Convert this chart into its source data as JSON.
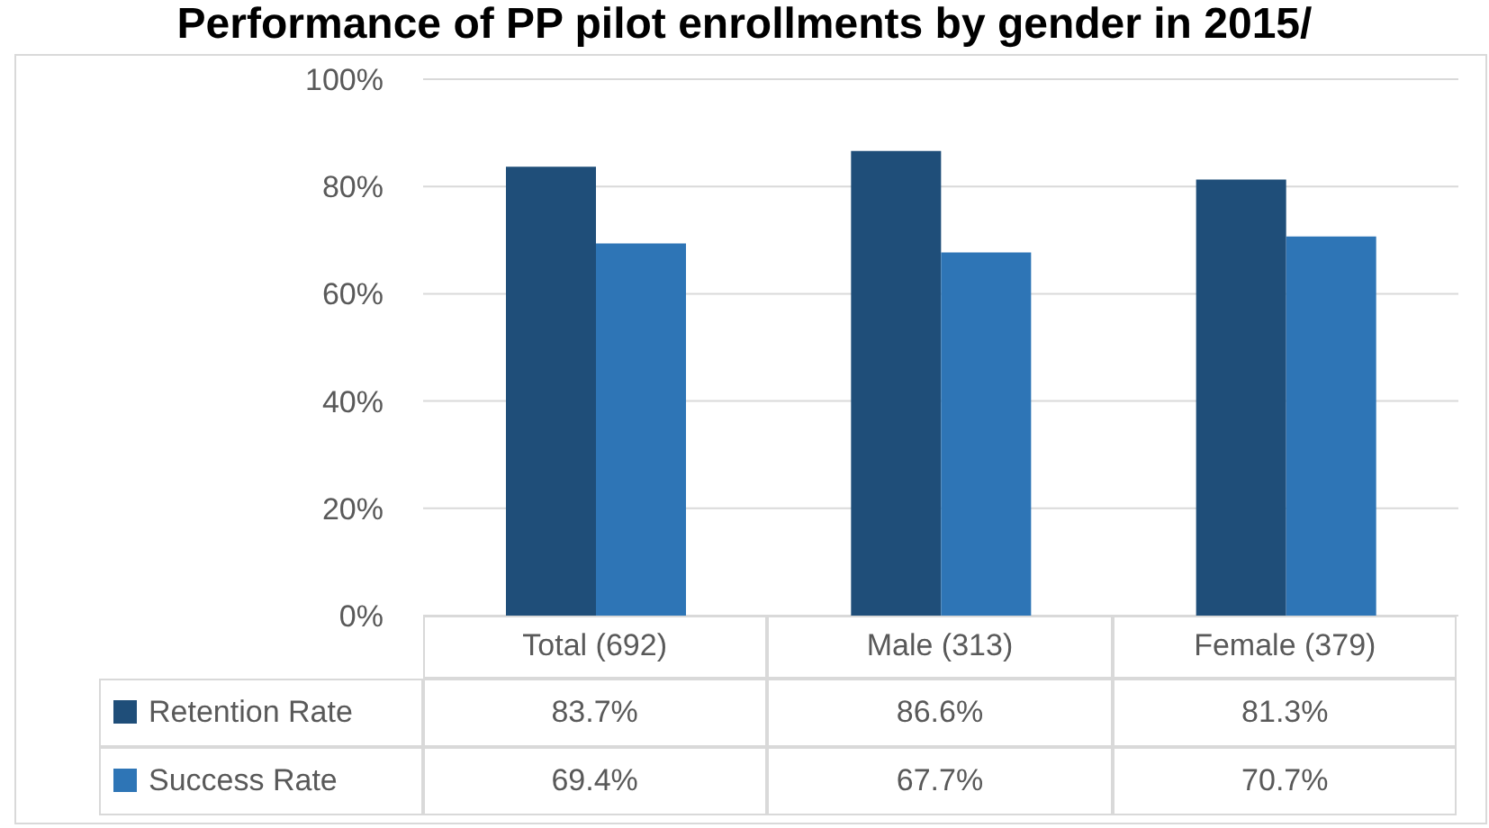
{
  "chart_data": {
    "type": "bar",
    "title": "Performance of PP pilot enrollments by gender in 2015/",
    "categories": [
      "Total (692)",
      "Male (313)",
      "Female (379)"
    ],
    "series": [
      {
        "name": "Retention Rate",
        "color": "#1f4e79",
        "values": [
          83.7,
          86.6,
          81.3
        ],
        "value_labels": [
          "83.7%",
          "86.6%",
          "81.3%"
        ]
      },
      {
        "name": "Success Rate",
        "color": "#2e75b6",
        "values": [
          69.4,
          67.7,
          70.7
        ],
        "value_labels": [
          "69.4%",
          "67.7%",
          "70.7%"
        ]
      }
    ],
    "ylim": [
      0,
      100
    ],
    "yticks": [
      {
        "value": 0,
        "label": "0%"
      },
      {
        "value": 20,
        "label": "20%"
      },
      {
        "value": 40,
        "label": "40%"
      },
      {
        "value": 60,
        "label": "60%"
      },
      {
        "value": 80,
        "label": "80%"
      },
      {
        "value": 100,
        "label": "100%"
      }
    ],
    "grid": "y",
    "legend": "bottom"
  }
}
